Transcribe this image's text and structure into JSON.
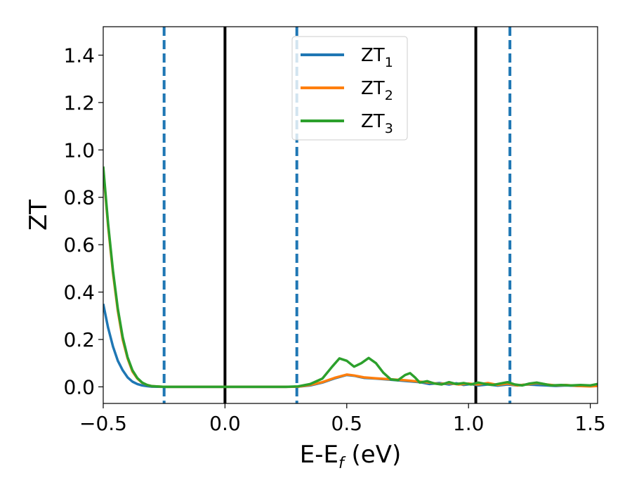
{
  "chart_data": {
    "type": "line",
    "xlabel_main": "E-E",
    "xlabel_sub": "f",
    "xlabel_tail": " (eV)",
    "ylabel": "ZT",
    "xlim": [
      -0.5,
      1.53
    ],
    "ylim": [
      -0.07,
      1.52
    ],
    "x_ticks": [
      {
        "value": -0.5,
        "label": "−0.5"
      },
      {
        "value": 0.0,
        "label": "0.0"
      },
      {
        "value": 0.5,
        "label": "0.5"
      },
      {
        "value": 1.0,
        "label": "1.0"
      },
      {
        "value": 1.5,
        "label": "1.5"
      }
    ],
    "y_ticks": [
      {
        "value": 0.0,
        "label": "0.0"
      },
      {
        "value": 0.2,
        "label": "0.2"
      },
      {
        "value": 0.4,
        "label": "0.4"
      },
      {
        "value": 0.6,
        "label": "0.6"
      },
      {
        "value": 0.8,
        "label": "0.8"
      },
      {
        "value": 1.0,
        "label": "1.0"
      },
      {
        "value": 1.2,
        "label": "1.2"
      },
      {
        "value": 1.4,
        "label": "1.4"
      }
    ],
    "vertical_lines": [
      {
        "x": -0.25,
        "style": "dashed",
        "color": "#1f77b4"
      },
      {
        "x": 0.0,
        "style": "solid",
        "color": "#000000"
      },
      {
        "x": 0.295,
        "style": "dashed",
        "color": "#1f77b4"
      },
      {
        "x": 1.03,
        "style": "solid",
        "color": "#000000"
      },
      {
        "x": 1.17,
        "style": "dashed",
        "color": "#1f77b4"
      }
    ],
    "legend_position": "upper-center",
    "series": [
      {
        "name": "ZT",
        "sub": "1",
        "color": "#1f77b4",
        "points": [
          [
            -0.5,
            0.35
          ],
          [
            -0.48,
            0.25
          ],
          [
            -0.46,
            0.17
          ],
          [
            -0.44,
            0.11
          ],
          [
            -0.42,
            0.07
          ],
          [
            -0.4,
            0.04
          ],
          [
            -0.38,
            0.022
          ],
          [
            -0.36,
            0.012
          ],
          [
            -0.34,
            0.006
          ],
          [
            -0.32,
            0.003
          ],
          [
            -0.3,
            0.001
          ],
          [
            -0.25,
            0.0
          ],
          [
            0.0,
            0.0
          ],
          [
            0.25,
            0.0
          ],
          [
            0.3,
            0.001
          ],
          [
            0.35,
            0.006
          ],
          [
            0.4,
            0.018
          ],
          [
            0.45,
            0.036
          ],
          [
            0.5,
            0.05
          ],
          [
            0.53,
            0.047
          ],
          [
            0.57,
            0.038
          ],
          [
            0.62,
            0.035
          ],
          [
            0.68,
            0.03
          ],
          [
            0.74,
            0.025
          ],
          [
            0.8,
            0.02
          ],
          [
            0.84,
            0.012
          ],
          [
            0.88,
            0.016
          ],
          [
            0.92,
            0.01
          ],
          [
            0.95,
            0.015
          ],
          [
            0.98,
            0.008
          ],
          [
            1.01,
            0.012
          ],
          [
            1.04,
            0.006
          ],
          [
            1.08,
            0.01
          ],
          [
            1.12,
            0.005
          ],
          [
            1.16,
            0.01
          ],
          [
            1.2,
            0.006
          ],
          [
            1.24,
            0.01
          ],
          [
            1.28,
            0.008
          ],
          [
            1.32,
            0.006
          ],
          [
            1.36,
            0.004
          ],
          [
            1.4,
            0.006
          ],
          [
            1.45,
            0.004
          ],
          [
            1.5,
            0.005
          ],
          [
            1.53,
            0.006
          ]
        ]
      },
      {
        "name": "ZT",
        "sub": "2",
        "color": "#ff7f0e",
        "points": [
          [
            -0.5,
            0.92
          ],
          [
            -0.48,
            0.68
          ],
          [
            -0.46,
            0.48
          ],
          [
            -0.44,
            0.32
          ],
          [
            -0.42,
            0.2
          ],
          [
            -0.4,
            0.12
          ],
          [
            -0.38,
            0.065
          ],
          [
            -0.36,
            0.035
          ],
          [
            -0.34,
            0.017
          ],
          [
            -0.32,
            0.008
          ],
          [
            -0.3,
            0.003
          ],
          [
            -0.25,
            0.0
          ],
          [
            0.0,
            0.0
          ],
          [
            0.25,
            0.0
          ],
          [
            0.3,
            0.001
          ],
          [
            0.35,
            0.008
          ],
          [
            0.4,
            0.02
          ],
          [
            0.45,
            0.038
          ],
          [
            0.5,
            0.052
          ],
          [
            0.53,
            0.048
          ],
          [
            0.57,
            0.04
          ],
          [
            0.62,
            0.036
          ],
          [
            0.68,
            0.032
          ],
          [
            0.74,
            0.028
          ],
          [
            0.8,
            0.022
          ],
          [
            0.84,
            0.018
          ],
          [
            0.88,
            0.012
          ],
          [
            0.92,
            0.016
          ],
          [
            0.96,
            0.01
          ],
          [
            1.0,
            0.014
          ],
          [
            1.04,
            0.01
          ],
          [
            1.08,
            0.016
          ],
          [
            1.12,
            0.008
          ],
          [
            1.16,
            0.014
          ],
          [
            1.2,
            0.006
          ],
          [
            1.24,
            0.01
          ],
          [
            1.28,
            0.016
          ],
          [
            1.32,
            0.01
          ],
          [
            1.36,
            0.006
          ],
          [
            1.4,
            0.008
          ],
          [
            1.45,
            0.004
          ],
          [
            1.5,
            0.002
          ],
          [
            1.53,
            0.004
          ]
        ]
      },
      {
        "name": "ZT",
        "sub": "3",
        "color": "#2ca02c",
        "points": [
          [
            -0.5,
            0.93
          ],
          [
            -0.48,
            0.69
          ],
          [
            -0.46,
            0.49
          ],
          [
            -0.44,
            0.33
          ],
          [
            -0.42,
            0.21
          ],
          [
            -0.4,
            0.125
          ],
          [
            -0.38,
            0.07
          ],
          [
            -0.36,
            0.037
          ],
          [
            -0.34,
            0.018
          ],
          [
            -0.32,
            0.008
          ],
          [
            -0.3,
            0.003
          ],
          [
            -0.25,
            0.0
          ],
          [
            0.0,
            0.0
          ],
          [
            0.25,
            0.0
          ],
          [
            0.3,
            0.002
          ],
          [
            0.35,
            0.012
          ],
          [
            0.4,
            0.035
          ],
          [
            0.44,
            0.085
          ],
          [
            0.47,
            0.12
          ],
          [
            0.5,
            0.11
          ],
          [
            0.53,
            0.085
          ],
          [
            0.56,
            0.1
          ],
          [
            0.59,
            0.122
          ],
          [
            0.62,
            0.1
          ],
          [
            0.65,
            0.06
          ],
          [
            0.68,
            0.032
          ],
          [
            0.71,
            0.028
          ],
          [
            0.74,
            0.05
          ],
          [
            0.76,
            0.058
          ],
          [
            0.78,
            0.04
          ],
          [
            0.8,
            0.018
          ],
          [
            0.83,
            0.024
          ],
          [
            0.86,
            0.014
          ],
          [
            0.89,
            0.01
          ],
          [
            0.92,
            0.02
          ],
          [
            0.95,
            0.012
          ],
          [
            0.98,
            0.016
          ],
          [
            1.01,
            0.01
          ],
          [
            1.04,
            0.018
          ],
          [
            1.07,
            0.012
          ],
          [
            1.1,
            0.008
          ],
          [
            1.13,
            0.014
          ],
          [
            1.16,
            0.02
          ],
          [
            1.19,
            0.01
          ],
          [
            1.22,
            0.006
          ],
          [
            1.25,
            0.014
          ],
          [
            1.28,
            0.018
          ],
          [
            1.31,
            0.012
          ],
          [
            1.34,
            0.006
          ],
          [
            1.38,
            0.008
          ],
          [
            1.42,
            0.006
          ],
          [
            1.46,
            0.008
          ],
          [
            1.5,
            0.006
          ],
          [
            1.53,
            0.012
          ]
        ]
      }
    ]
  }
}
